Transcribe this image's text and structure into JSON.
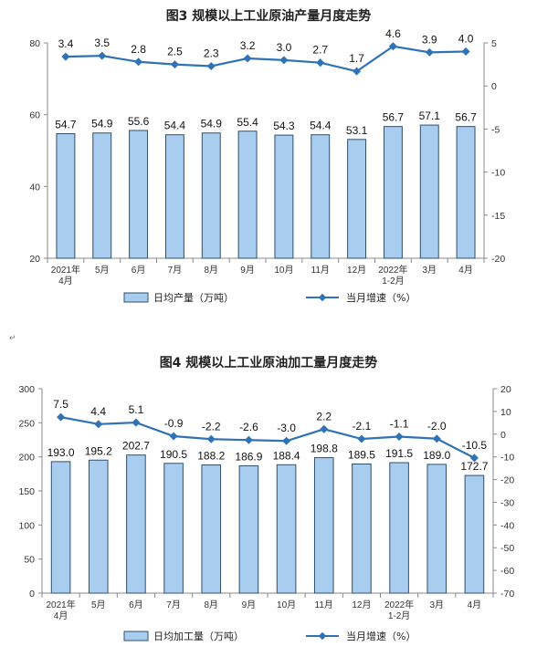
{
  "separator_mark": "↵",
  "colors": {
    "bar_fill": "#a9cdef",
    "bar_stroke": "#2f4f6f",
    "line": "#2f73b6",
    "axis": "#888888"
  },
  "chart_data": [
    {
      "type": "bar+line",
      "title": "图3  规模以上工业原油产量月度走势",
      "categories": [
        "2021年\n4月",
        "5月",
        "6月",
        "7月",
        "8月",
        "9月",
        "10月",
        "11月",
        "12月",
        "2022年\n1-2月",
        "3月",
        "4月"
      ],
      "bar_series": {
        "name": "日均产量（万吨）",
        "values": [
          54.7,
          54.9,
          55.6,
          54.4,
          54.9,
          55.4,
          54.3,
          54.4,
          53.1,
          56.7,
          57.1,
          56.7
        ]
      },
      "line_series": {
        "name": "当月增速（%）",
        "values": [
          3.4,
          3.5,
          2.8,
          2.5,
          2.3,
          3.2,
          3.0,
          2.7,
          1.7,
          4.6,
          3.9,
          4.0
        ]
      },
      "y_left": {
        "lim": [
          20,
          80
        ],
        "ticks": [
          20,
          40,
          60,
          80
        ]
      },
      "y_right": {
        "lim": [
          -20,
          5
        ],
        "ticks": [
          5,
          0,
          -5,
          -10,
          -15,
          -20
        ]
      },
      "legend_position": "bottom",
      "grid": false
    },
    {
      "type": "bar+line",
      "title": "图4  规模以上工业原油加工量月度走势",
      "categories": [
        "2021年\n4月",
        "5月",
        "6月",
        "7月",
        "8月",
        "9月",
        "10月",
        "11月",
        "12月",
        "2022年\n1-2月",
        "3月",
        "4月"
      ],
      "bar_series": {
        "name": "日均加工量（万吨）",
        "values": [
          193.0,
          195.2,
          202.7,
          190.5,
          188.2,
          186.9,
          188.4,
          198.8,
          189.5,
          191.5,
          189.0,
          172.7
        ]
      },
      "line_series": {
        "name": "当月增速（%）",
        "values": [
          7.5,
          4.4,
          5.1,
          -0.9,
          -2.2,
          -2.6,
          -3.0,
          2.2,
          -2.1,
          -1.1,
          -2.0,
          -10.5
        ]
      },
      "y_left": {
        "lim": [
          0,
          300
        ],
        "ticks": [
          0,
          50,
          100,
          150,
          200,
          250,
          300
        ]
      },
      "y_right": {
        "lim": [
          -70,
          20
        ],
        "ticks": [
          20,
          10,
          0,
          -10,
          -20,
          -30,
          -40,
          -50,
          -60,
          -70
        ]
      },
      "legend_position": "bottom",
      "grid": false
    }
  ]
}
